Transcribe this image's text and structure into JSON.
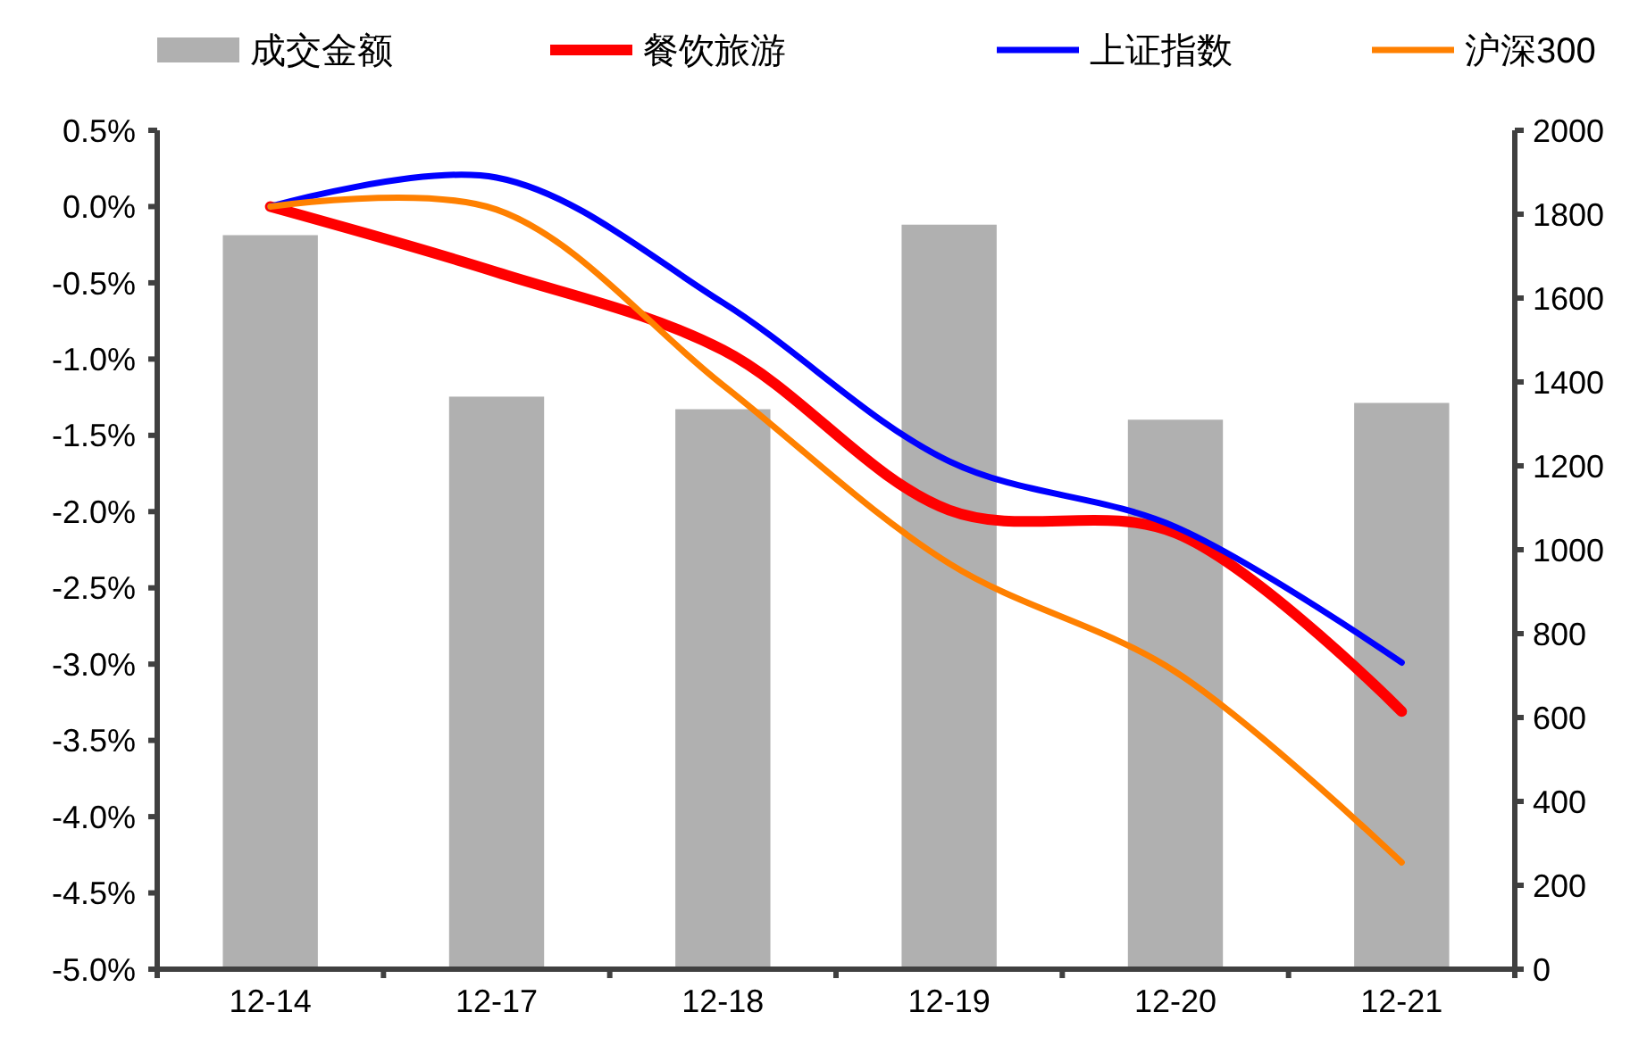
{
  "chart_data": {
    "type": "line",
    "categories": [
      "12-14",
      "12-17",
      "12-18",
      "12-19",
      "12-20",
      "12-21"
    ],
    "series": [
      {
        "name": "成交金额",
        "type": "bar",
        "axis": "y2",
        "color": "#b0b0b0",
        "values": [
          1750,
          1365,
          1335,
          1775,
          1310,
          1350
        ]
      },
      {
        "name": "餐饮旅游",
        "color": "#ff0000",
        "values": [
          0,
          -0.43,
          -0.94,
          -1.99,
          -2.14,
          -3.31
        ]
      },
      {
        "name": "上证指数",
        "color": "#0000ff",
        "values": [
          0,
          0.19,
          -0.63,
          -1.67,
          -2.1,
          -2.99
        ]
      },
      {
        "name": "沪深300",
        "color": "#ff8000",
        "values": [
          0,
          -0.02,
          -1.17,
          -2.34,
          -3.05,
          -4.3
        ]
      }
    ],
    "ylim": [
      -5,
      0.5
    ],
    "yticks": [
      {
        "value": 0.5,
        "label": "0.5%"
      },
      {
        "value": 0,
        "label": "0.0%"
      },
      {
        "value": -0.5,
        "label": "-0.5%"
      },
      {
        "value": -1,
        "label": "-1.0%"
      },
      {
        "value": -1.5,
        "label": "-1.5%"
      },
      {
        "value": -2,
        "label": "-2.0%"
      },
      {
        "value": -2.5,
        "label": "-2.5%"
      },
      {
        "value": -3,
        "label": "-3.0%"
      },
      {
        "value": -3.5,
        "label": "-3.5%"
      },
      {
        "value": -4,
        "label": "-4.0%"
      },
      {
        "value": -4.5,
        "label": "-4.5%"
      },
      {
        "value": -5,
        "label": "-5.0%"
      }
    ],
    "y2lim": [
      0,
      2000
    ],
    "y2ticks": [
      0,
      200,
      400,
      600,
      800,
      1000,
      1200,
      1400,
      1600,
      1800,
      2000
    ],
    "legend": "top",
    "grid": false,
    "line_style": "solid",
    "marker": "none"
  }
}
